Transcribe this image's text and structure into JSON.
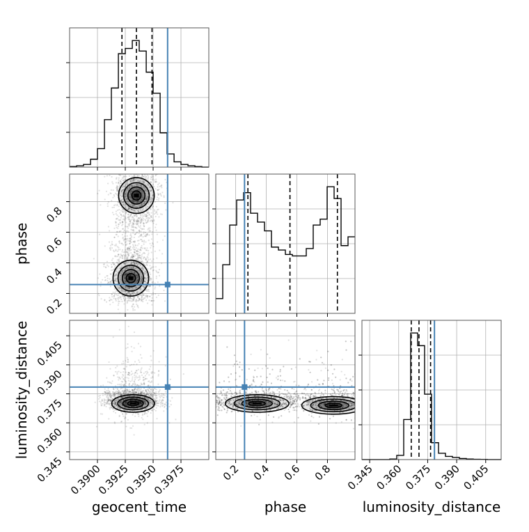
{
  "chart_data": {
    "type": "corner",
    "parameters": [
      "geocent_time",
      "phase",
      "luminosity_distance"
    ],
    "truths": {
      "geocent_time": 0.3963,
      "phase": 0.258,
      "luminosity_distance": 0.3785
    },
    "ranges": {
      "geocent_time": [
        0.3875,
        0.4
      ],
      "phase": [
        0.07,
        0.98
      ],
      "luminosity_distance": [
        0.341,
        0.413
      ]
    },
    "ticks": {
      "geocent_time": {
        "values": [
          0.39,
          0.3925,
          0.395,
          0.3975
        ],
        "labels": [
          "0.3900",
          "0.3925",
          "0.3950",
          "0.3975"
        ]
      },
      "phase": {
        "values": [
          0.2,
          0.4,
          0.6,
          0.8
        ],
        "labels": [
          "0.2",
          "0.4",
          "0.6",
          "0.8"
        ]
      },
      "luminosity_distance": {
        "values": [
          0.345,
          0.36,
          0.375,
          0.39,
          0.405
        ],
        "labels": [
          "0.345",
          "0.360",
          "0.375",
          "0.390",
          "0.405"
        ]
      }
    },
    "quantiles": {
      "geocent_time": [
        0.3922,
        0.3935,
        0.3949
      ],
      "phase": [
        0.28,
        0.555,
        0.865
      ],
      "luminosity_distance": [
        0.3665,
        0.3705,
        0.3765
      ]
    },
    "histograms": {
      "geocent_time": {
        "edges": [
          0.3875,
          0.38813,
          0.38875,
          0.38938,
          0.39,
          0.39063,
          0.39125,
          0.39188,
          0.3925,
          0.39313,
          0.39375,
          0.39438,
          0.395,
          0.39563,
          0.39625,
          0.39688,
          0.3975,
          0.39813,
          0.39875,
          0.39938,
          0.4
        ],
        "counts": [
          0.4,
          1,
          2,
          6,
          14,
          36,
          60,
          86,
          90,
          96,
          88,
          72,
          56,
          26,
          10,
          4,
          2,
          1,
          0.4,
          0
        ]
      },
      "phase": {
        "edges": [
          0.07,
          0.1155,
          0.161,
          0.2065,
          0.252,
          0.2975,
          0.343,
          0.3885,
          0.434,
          0.4795,
          0.525,
          0.5705,
          0.616,
          0.6615,
          0.707,
          0.7525,
          0.798,
          0.8435,
          0.889,
          0.9345,
          0.98
        ],
        "counts": [
          10,
          33,
          60,
          77,
          82,
          68,
          62,
          56,
          45,
          43,
          40,
          39,
          39,
          44,
          60,
          64,
          86,
          78,
          46,
          52
        ]
      },
      "luminosity_distance": {
        "edges": [
          0.341,
          0.3446,
          0.3482,
          0.3518,
          0.3554,
          0.359,
          0.3626,
          0.3662,
          0.3698,
          0.3734,
          0.377,
          0.3806,
          0.3842,
          0.3878,
          0.3914,
          0.395,
          0.3986,
          0.4022,
          0.4058,
          0.4094,
          0.413
        ],
        "counts": [
          0,
          0,
          0,
          0,
          0.5,
          4,
          38,
          120,
          108,
          62,
          16,
          6,
          3,
          2,
          1,
          0.5,
          0.3,
          0.2,
          0,
          0
        ]
      }
    },
    "density_peaks": {
      "phase_vs_geocent_time": [
        {
          "x": 0.3935,
          "y": 0.84,
          "level": 1.0
        },
        {
          "x": 0.393,
          "y": 0.3,
          "level": 0.95
        }
      ],
      "luminosity_distance_vs_geocent_time": [
        {
          "x": 0.3932,
          "y": 0.37,
          "level": 1.0
        }
      ],
      "luminosity_distance_vs_phase": [
        {
          "x": 0.34,
          "y": 0.37,
          "level": 0.95
        },
        {
          "x": 0.84,
          "y": 0.369,
          "level": 1.0
        }
      ]
    },
    "colors": {
      "truth": "#4682b4",
      "hist": "#000000",
      "grid": "#b0b0b0"
    },
    "grid": true
  }
}
